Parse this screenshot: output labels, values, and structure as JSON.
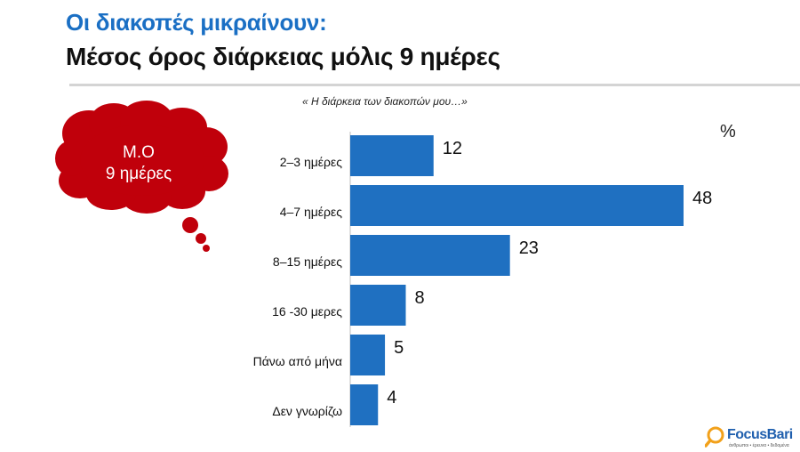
{
  "header": {
    "title": "Οι διακοπές μικραίνουν:",
    "subtitle": "Μέσος όρος διάρκειας μόλις 9 ημέρες"
  },
  "callout": {
    "line1": "Μ.Ο",
    "line2": "9 ημέρες"
  },
  "logo": {
    "name": "FocusBari",
    "tagline": "άνθρωποι • έρευνα • δεδομένα"
  },
  "colors": {
    "bar": "#1f70c1",
    "title_blue": "#1a6fc4",
    "cloud": "#c0000b"
  },
  "chart_data": {
    "type": "bar",
    "orientation": "horizontal",
    "title": "« Η διάρκεια των διακοπών μου…»",
    "unit_label": "%",
    "categories": [
      "2–3 ημέρες",
      "4–7 ημέρες",
      "8–15 ημέρες",
      "16 -30 μερες",
      "Πάνω από μήνα",
      "Δεν γνωρίζω"
    ],
    "values": [
      12,
      48,
      23,
      8,
      5,
      4
    ],
    "xlim": [
      0,
      48
    ],
    "grid": false,
    "legend": "none"
  }
}
